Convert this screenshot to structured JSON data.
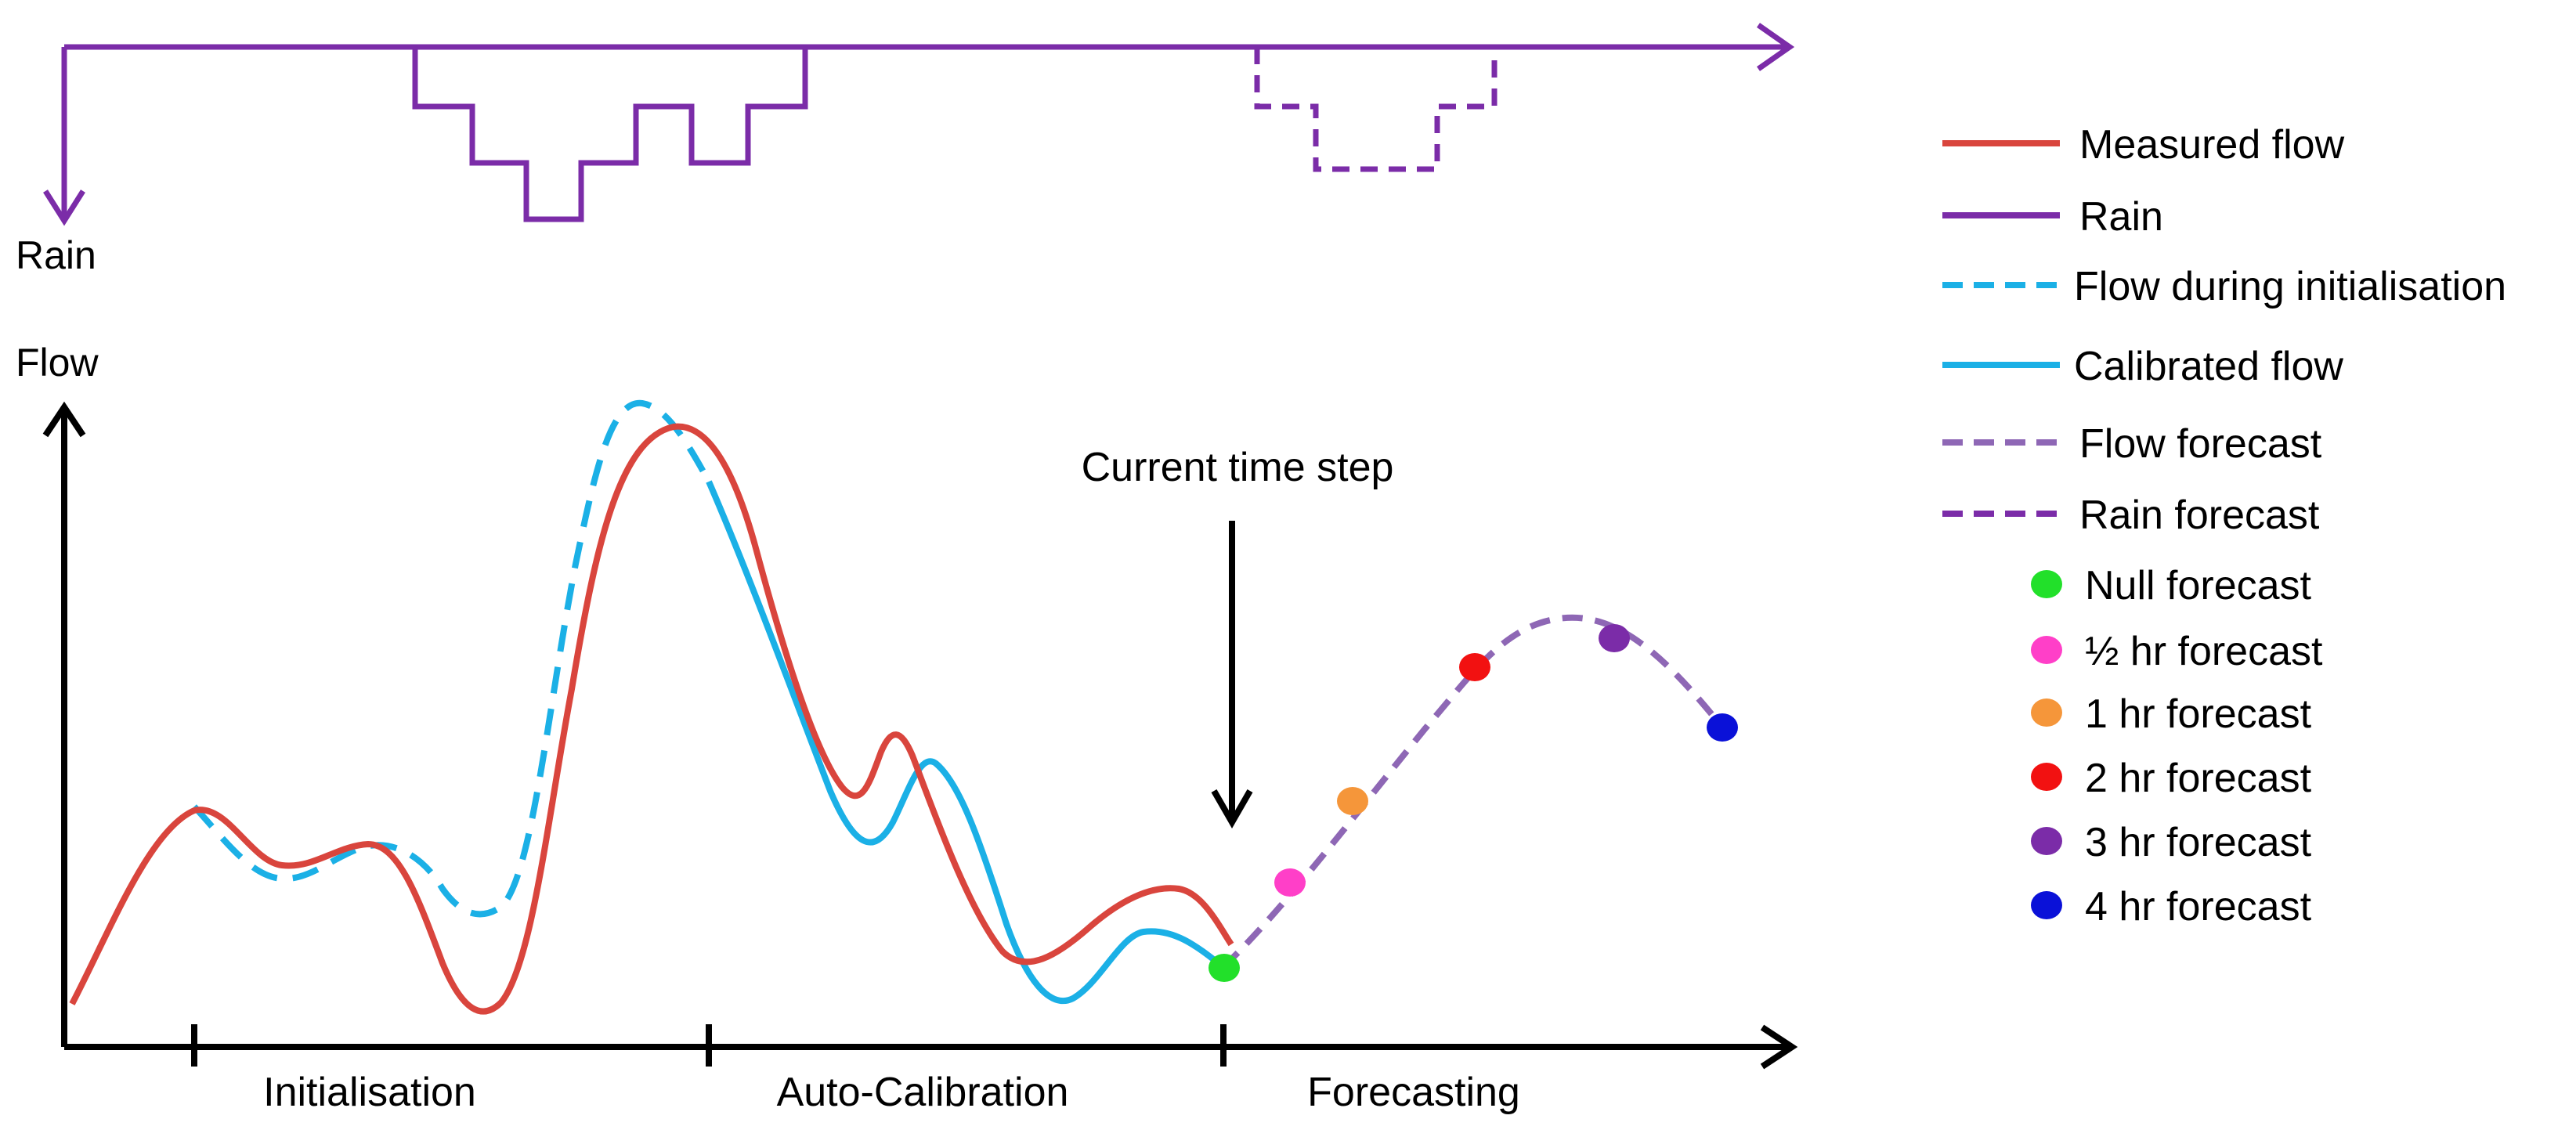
{
  "labels": {
    "rain_axis": "Rain",
    "flow_axis": "Flow",
    "current_time_step": "Current time step"
  },
  "phases": [
    "Initialisation",
    "Auto-Calibration",
    "Forecasting"
  ],
  "legend": [
    {
      "label": "Measured flow",
      "symbol": "solid-line",
      "color": "#D9453D"
    },
    {
      "label": "Rain",
      "symbol": "solid-line",
      "color": "#7B2CA8"
    },
    {
      "label": "Flow during initialisation",
      "symbol": "dashed-line",
      "color": "#1BB0E6"
    },
    {
      "label": "Calibrated flow",
      "symbol": "solid-line",
      "color": "#1BB0E6"
    },
    {
      "label": "Flow forecast",
      "symbol": "dashed-line",
      "color": "#8E67B5"
    },
    {
      "label": "Rain forecast",
      "symbol": "dashed-line",
      "color": "#7B2CA8"
    },
    {
      "label": "Null forecast",
      "symbol": "dot",
      "color": "#22E02A"
    },
    {
      "label": "½ hr forecast",
      "symbol": "dot",
      "color": "#FF3FC8"
    },
    {
      "label": "1 hr forecast",
      "symbol": "dot",
      "color": "#F5963A"
    },
    {
      "label": "2 hr forecast",
      "symbol": "dot",
      "color": "#F21111"
    },
    {
      "label": "3 hr forecast",
      "symbol": "dot",
      "color": "#7B2CA8"
    },
    {
      "label": "4 hr forecast",
      "symbol": "dot",
      "color": "#0A11D8"
    }
  ],
  "colors": {
    "axis": "#000000",
    "measured_flow": "#D9453D",
    "rain": "#7B2CA8",
    "initialisation_flow": "#1BB0E6",
    "calibrated_flow": "#1BB0E6",
    "flow_forecast": "#8E67B5",
    "rain_forecast": "#7B2CA8"
  }
}
